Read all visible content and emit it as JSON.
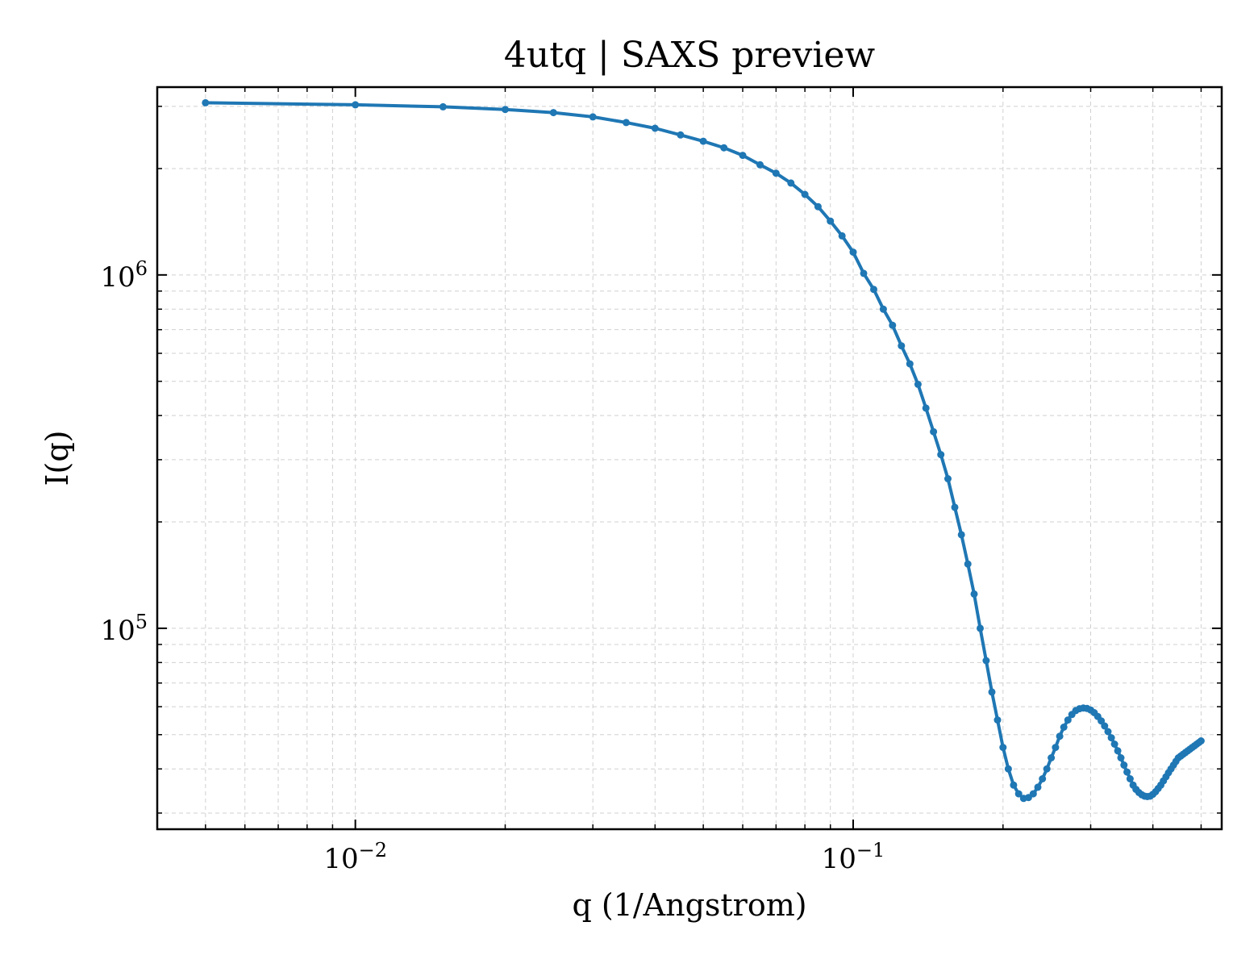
{
  "chart_data": {
    "type": "line",
    "title": "4utq | SAXS preview",
    "xlabel": "q (1/Angstrom)",
    "ylabel": "I(q)",
    "xscale": "log",
    "yscale": "log",
    "xlim": [
      0.004,
      0.55
    ],
    "ylim": [
      27000,
      3400000
    ],
    "grid": true,
    "x_ticks": [
      {
        "value": 0.01,
        "base": "10",
        "exp": "−2"
      },
      {
        "value": 0.1,
        "base": "10",
        "exp": "−1"
      }
    ],
    "y_ticks": [
      {
        "value": 100000,
        "base": "10",
        "exp": "5"
      },
      {
        "value": 1000000,
        "base": "10",
        "exp": "6"
      }
    ],
    "colors": {
      "series": "#1f77b4",
      "grid": "#d0d0d0",
      "axes": "#000000"
    },
    "series": [
      {
        "x": [
          0.005,
          0.01,
          0.015,
          0.02,
          0.025,
          0.03,
          0.035,
          0.04,
          0.045,
          0.05,
          0.055,
          0.06,
          0.065,
          0.07,
          0.075,
          0.08,
          0.085,
          0.09,
          0.095,
          0.1,
          0.105,
          0.11,
          0.115,
          0.12,
          0.125,
          0.13,
          0.135,
          0.14,
          0.145,
          0.15,
          0.155,
          0.16,
          0.165,
          0.17,
          0.175,
          0.18,
          0.185,
          0.19,
          0.195,
          0.2,
          0.205,
          0.21,
          0.215,
          0.22,
          0.225,
          0.23,
          0.235,
          0.24,
          0.245,
          0.25,
          0.255,
          0.26,
          0.265,
          0.27,
          0.275,
          0.28,
          0.285,
          0.29,
          0.295,
          0.3,
          0.305,
          0.31,
          0.315,
          0.32,
          0.325,
          0.33,
          0.335,
          0.34,
          0.345,
          0.35,
          0.355,
          0.36,
          0.365,
          0.37,
          0.375,
          0.38,
          0.385,
          0.39,
          0.395,
          0.4,
          0.405,
          0.41,
          0.415,
          0.42,
          0.425,
          0.43,
          0.435,
          0.44,
          0.445,
          0.45,
          0.455,
          0.46,
          0.465,
          0.47,
          0.475,
          0.48,
          0.485,
          0.49,
          0.495,
          0.5
        ],
        "y": [
          3070000,
          3030000,
          2990000,
          2940000,
          2880000,
          2800000,
          2700000,
          2600000,
          2490000,
          2390000,
          2290000,
          2180000,
          2050000,
          1940000,
          1820000,
          1690000,
          1560000,
          1420000,
          1290000,
          1160000,
          1010000,
          910000,
          800000,
          720000,
          630000,
          560000,
          490000,
          420000,
          360000,
          310000,
          265000,
          220000,
          184000,
          152000,
          125000,
          100000,
          81000,
          66000,
          55000,
          46000,
          40000,
          36000,
          34000,
          33000,
          33200,
          34000,
          35500,
          37500,
          40000,
          43000,
          46000,
          49500,
          52500,
          55000,
          57000,
          58500,
          59200,
          59500,
          59300,
          58700,
          57700,
          56300,
          54700,
          52900,
          51000,
          49000,
          47000,
          45000,
          43000,
          41000,
          39200,
          37500,
          36000,
          35000,
          34300,
          33800,
          33500,
          33400,
          33500,
          33900,
          34500,
          35200,
          36000,
          37000,
          38000,
          39000,
          40000,
          41000,
          42000,
          43000,
          43500,
          44000,
          44500,
          45000,
          45500,
          46000,
          46500,
          47000,
          47500,
          48000
        ]
      }
    ]
  }
}
